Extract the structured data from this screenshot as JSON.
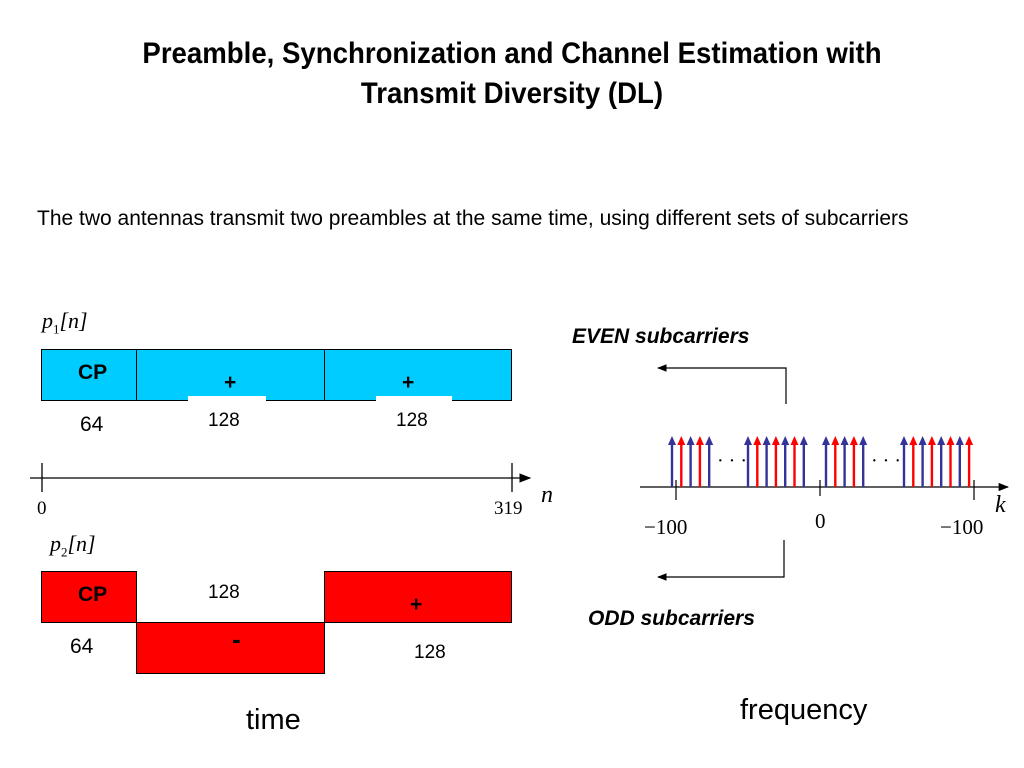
{
  "title": {
    "line1": "Preamble, Synchronization and Channel Estimation with",
    "line2": "Transmit Diversity (DL)"
  },
  "description": "The two antennas transmit two preambles at the same time, using different sets of subcarriers",
  "time_diagram": {
    "p1": {
      "symbol": "p",
      "subscript": "1",
      "arg": "[n]",
      "cp_label": "CP",
      "cp_length": "64",
      "sign1": "+",
      "sign2": "+",
      "len1": "128",
      "len2": "128",
      "color": "#00CCFF"
    },
    "axis": {
      "start": "0",
      "end": "319",
      "var": "n"
    },
    "p2": {
      "symbol": "p",
      "subscript": "2",
      "arg": "[n]",
      "cp_label": "CP",
      "cp_length": "64",
      "sign1": "-",
      "sign2": "+",
      "len1": "128",
      "len2": "128",
      "color": "#FF0000"
    },
    "caption": "time"
  },
  "freq_diagram": {
    "even_label": "EVEN subcarriers",
    "even_color": "#333399",
    "odd_label": "ODD subcarriers",
    "odd_color": "#FF0000",
    "dots_left": "· · ·",
    "dots_right": "· · ·",
    "tick_left": "−100",
    "tick_center": "0",
    "tick_right": "−100",
    "axis_var": "k",
    "caption": "frequency"
  }
}
